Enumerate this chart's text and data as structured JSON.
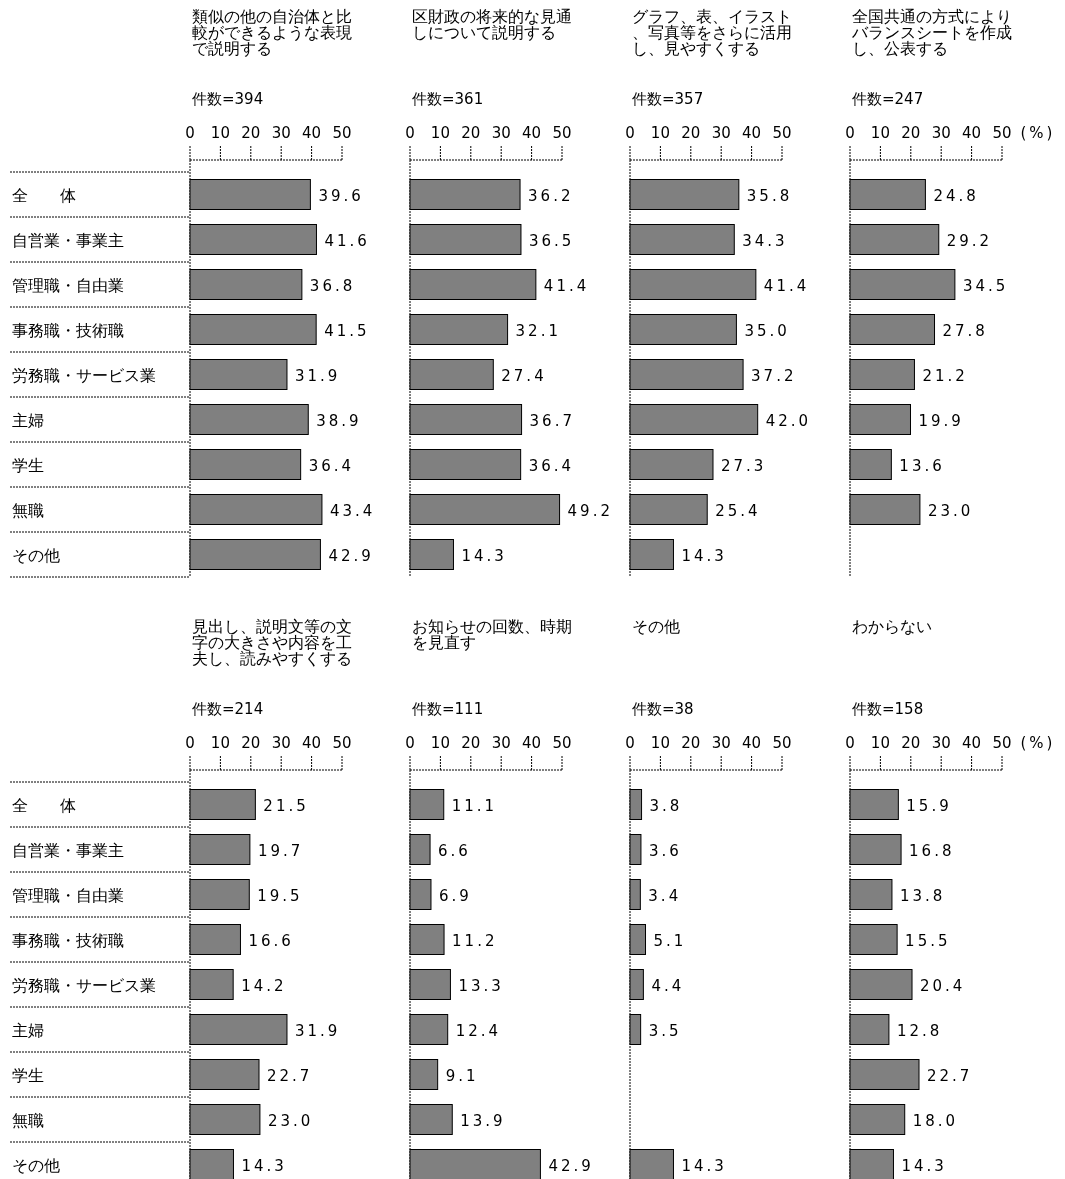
{
  "chart_data": [
    {
      "type": "bar",
      "orientation": "horizontal",
      "title": "類似の他の自治体と比較ができるような表現で説明する",
      "annotations": [
        "件数=394"
      ],
      "categories": [
        "全　　体",
        "自営業・事業主",
        "管理職・自由業",
        "事務職・技術職",
        "労務職・サービス業",
        "主婦",
        "学生",
        "無職",
        "その他"
      ],
      "values": [
        39.6,
        41.6,
        36.8,
        41.5,
        31.9,
        38.9,
        36.4,
        43.4,
        42.9
      ],
      "value_labels": [
        "39.6",
        "41.6",
        "36.8",
        "41.5",
        "31.9",
        "38.9",
        "36.4",
        "43.4",
        "42.9"
      ],
      "color": "#808080",
      "xlim": [
        0,
        50
      ],
      "xticks": [
        0,
        10,
        20,
        30,
        40,
        50
      ]
    },
    {
      "type": "bar",
      "orientation": "horizontal",
      "title": "区財政の将来的な見通しについて説明する",
      "annotations": [
        "件数=361"
      ],
      "categories": [
        null,
        null,
        null,
        null,
        null,
        null,
        null,
        null,
        null
      ],
      "values": [
        36.2,
        36.5,
        41.4,
        32.1,
        27.4,
        36.7,
        36.4,
        49.2,
        14.3
      ],
      "value_labels": [
        "36.2",
        "36.5",
        "41.4",
        "32.1",
        "27.4",
        "36.7",
        "36.4",
        "49.2",
        "14.3"
      ],
      "color": "#808080",
      "xlim": [
        0,
        50
      ],
      "xticks": [
        0,
        10,
        20,
        30,
        40,
        50
      ],
      "tick_labels": "x"
    },
    {
      "type": "bar",
      "orientation": "horizontal",
      "title": "グラフ、表、イラスト、写真等をさらに活用し、見やすくする",
      "annotations": [
        "件数=357"
      ],
      "categories": [
        null,
        null,
        null,
        null,
        null,
        null,
        null,
        null,
        null
      ],
      "values": [
        35.8,
        34.3,
        41.4,
        35.0,
        37.2,
        42.0,
        27.3,
        25.4,
        14.3
      ],
      "value_labels": [
        "35.8",
        "34.3",
        "41.4",
        "35.0",
        "37.2",
        "42.0",
        "27.3",
        "25.4",
        "14.3"
      ],
      "color": "#808080",
      "xlim": [
        0,
        50
      ],
      "xticks": [
        0,
        10,
        20,
        30,
        40,
        50
      ],
      "tick_labels": "x"
    },
    {
      "type": "bar",
      "orientation": "horizontal",
      "title": "全国共通の方式によりバランスシートを作成し、公表する",
      "annotations": [
        "件数=247"
      ],
      "xlabel": "(%)",
      "categories": [
        null,
        null,
        null,
        null,
        null,
        null,
        null,
        null,
        null
      ],
      "values": [
        24.8,
        29.2,
        34.5,
        27.8,
        21.2,
        19.9,
        13.6,
        23.0,
        null
      ],
      "value_labels": [
        "24.8",
        "29.2",
        "34.5",
        "27.8",
        "21.2",
        "19.9",
        "13.6",
        "23.0",
        null
      ],
      "color": "#808080",
      "xlim": [
        0,
        50
      ],
      "xticks": [
        0,
        10,
        20,
        30,
        40,
        50
      ],
      "tick_labels": "x"
    },
    {
      "type": "bar",
      "orientation": "horizontal",
      "title": "見出し、説明文等の文字の大きさや内容を工夫し、読みやすくする",
      "annotations": [
        "件数=214"
      ],
      "categories": [
        "全　　体",
        "自営業・事業主",
        "管理職・自由業",
        "事務職・技術職",
        "労務職・サービス業",
        "主婦",
        "学生",
        "無職",
        "その他"
      ],
      "values": [
        21.5,
        19.7,
        19.5,
        16.6,
        14.2,
        31.9,
        22.7,
        23.0,
        14.3
      ],
      "value_labels": [
        "21.5",
        "19.7",
        "19.5",
        "16.6",
        "14.2",
        "31.9",
        "22.7",
        "23.0",
        "14.3"
      ],
      "color": "#808080",
      "xlim": [
        0,
        50
      ],
      "xticks": [
        0,
        10,
        20,
        30,
        40,
        50
      ]
    },
    {
      "type": "bar",
      "orientation": "horizontal",
      "title": "お知らせの回数、時期を見直す",
      "annotations": [
        "件数=111"
      ],
      "categories": [
        null,
        null,
        null,
        null,
        null,
        null,
        null,
        null,
        null
      ],
      "values": [
        11.1,
        6.6,
        6.9,
        11.2,
        13.3,
        12.4,
        9.1,
        13.9,
        42.9
      ],
      "value_labels": [
        "11.1",
        "6.6",
        "6.9",
        "11.2",
        "13.3",
        "12.4",
        "9.1",
        "13.9",
        "42.9"
      ],
      "color": "#808080",
      "xlim": [
        0,
        50
      ],
      "xticks": [
        0,
        10,
        20,
        30,
        40,
        50
      ],
      "tick_labels": "x"
    },
    {
      "type": "bar",
      "orientation": "horizontal",
      "title": "その他",
      "annotations": [
        "件数=38"
      ],
      "categories": [
        null,
        null,
        null,
        null,
        null,
        null,
        null,
        null,
        null
      ],
      "values": [
        3.8,
        3.6,
        3.4,
        5.1,
        4.4,
        3.5,
        null,
        null,
        14.3
      ],
      "value_labels": [
        "3.8",
        "3.6",
        "3.4",
        "5.1",
        "4.4",
        "3.5",
        null,
        null,
        "14.3"
      ],
      "color": "#808080",
      "xlim": [
        0,
        50
      ],
      "xticks": [
        0,
        10,
        20,
        30,
        40,
        50
      ],
      "tick_labels": "x"
    },
    {
      "type": "bar",
      "orientation": "horizontal",
      "title": "わからない",
      "annotations": [
        "件数=158"
      ],
      "xlabel": "(%)",
      "categories": [
        null,
        null,
        null,
        null,
        null,
        null,
        null,
        null,
        null
      ],
      "values": [
        15.9,
        16.8,
        13.8,
        15.5,
        20.4,
        12.8,
        22.7,
        18.0,
        14.3
      ],
      "value_labels": [
        "15.9",
        "16.8",
        "13.8",
        "15.5",
        "20.4",
        "12.8",
        "22.7",
        "18.0",
        "14.3"
      ],
      "color": "#808080",
      "xlim": [
        0,
        50
      ],
      "xticks": [
        0,
        10,
        20,
        30,
        40,
        50
      ],
      "tick_labels": "x"
    }
  ]
}
